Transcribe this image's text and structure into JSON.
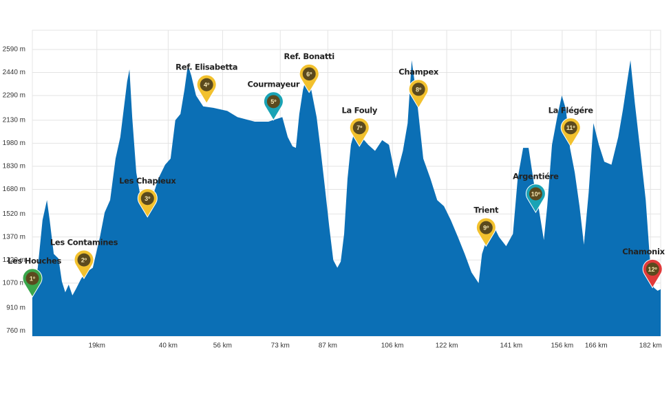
{
  "chart_data": {
    "type": "area",
    "color": "#0b6fb5",
    "grid": true,
    "x": [
      0,
      1.6,
      3.0,
      4.3,
      5.1,
      6.3,
      7.7,
      8.7,
      9.7,
      10.7,
      11.8,
      12.8,
      14.4,
      15.8,
      17.8,
      19.9,
      21.3,
      22.9,
      24.5,
      25.9,
      26.9,
      27.9,
      28.6,
      29.4,
      30.6,
      32.0,
      33.4,
      35.1,
      37.1,
      39.1,
      40.7,
      42.1,
      43.6,
      44.8,
      45.8,
      46.8,
      48.2,
      50.3,
      53.3,
      57.4,
      60.4,
      65.5,
      69.5,
      73.6,
      75.2,
      76.6,
      77.6,
      78.6,
      79.7,
      81.1,
      82.1,
      83.7,
      84.7,
      86.1,
      87.4,
      88.6,
      89.8,
      90.8,
      91.8,
      92.8,
      93.8,
      94.9,
      96.9,
      98.9,
      100.9,
      103.0,
      105.0,
      107.0,
      109.1,
      110.5,
      111.7,
      113.1,
      115.1,
      117.2,
      119.2,
      121.2,
      123.2,
      125.3,
      127.3,
      129.3,
      131.4,
      132.4,
      134.0,
      135.4,
      137.4,
      139.5,
      141.5,
      142.9,
      144.5,
      146.1,
      147.6,
      149.0,
      150.6,
      151.6,
      153.0,
      154.7,
      155.9,
      157.1,
      158.3,
      159.7,
      161.1,
      162.4,
      163.8,
      165.2,
      166.8,
      168.4,
      170.5,
      172.5,
      173.9,
      175.4,
      176.1,
      177.4,
      179.0,
      180.6,
      182.0,
      183.0,
      184.1,
      185
    ],
    "values": [
      990,
      1170,
      1480,
      1610,
      1480,
      1260,
      1230,
      1080,
      1010,
      1060,
      990,
      1030,
      1100,
      1140,
      1170,
      1370,
      1530,
      1610,
      1880,
      2020,
      2200,
      2380,
      2460,
      2150,
      1790,
      1610,
      1570,
      1610,
      1750,
      1840,
      1880,
      2130,
      2170,
      2330,
      2490,
      2420,
      2290,
      2220,
      2210,
      2190,
      2150,
      2120,
      2120,
      2150,
      2020,
      1960,
      1950,
      2170,
      2330,
      2440,
      2330,
      2150,
      1970,
      1700,
      1440,
      1220,
      1170,
      1210,
      1390,
      1750,
      1970,
      2060,
      2020,
      1970,
      1930,
      2000,
      1970,
      1750,
      1930,
      2110,
      2520,
      2290,
      1880,
      1750,
      1610,
      1570,
      1480,
      1370,
      1260,
      1140,
      1070,
      1260,
      1370,
      1460,
      1370,
      1310,
      1390,
      1750,
      1950,
      1950,
      1730,
      1570,
      1350,
      1570,
      1970,
      2170,
      2290,
      2200,
      1950,
      1790,
      1570,
      1320,
      1660,
      2110,
      1970,
      1860,
      1840,
      2020,
      2200,
      2420,
      2520,
      2240,
      1930,
      1610,
      1170,
      1040,
      1020,
      1030
    ],
    "xlim": [
      0,
      185
    ],
    "ylim": [
      725,
      2715
    ],
    "xticks": [
      {
        "value": 19,
        "label": "19km"
      },
      {
        "value": 40,
        "label": "40 km"
      },
      {
        "value": 56,
        "label": "56 km"
      },
      {
        "value": 73,
        "label": "73 km"
      },
      {
        "value": 87,
        "label": "87 km"
      },
      {
        "value": 106,
        "label": "106 km"
      },
      {
        "value": 122,
        "label": "122 km"
      },
      {
        "value": 141,
        "label": "141 km"
      },
      {
        "value": 156,
        "label": "156 km"
      },
      {
        "value": 166,
        "label": "166 km"
      },
      {
        "value": 182,
        "label": "182 km"
      }
    ],
    "yticks": [
      {
        "value": 760,
        "label": "760 m"
      },
      {
        "value": 910,
        "label": "910 m"
      },
      {
        "value": 1070,
        "label": "1070 m"
      },
      {
        "value": 1220,
        "label": "1220 m"
      },
      {
        "value": 1370,
        "label": "1370 m"
      },
      {
        "value": 1520,
        "label": "1520 m"
      },
      {
        "value": 1680,
        "label": "1680 m"
      },
      {
        "value": 1830,
        "label": "1830 m"
      },
      {
        "value": 1980,
        "label": "1980 m"
      },
      {
        "value": 2130,
        "label": "2130 m"
      },
      {
        "value": 2290,
        "label": "2290 m"
      },
      {
        "value": 2440,
        "label": "2440 m"
      },
      {
        "value": 2590,
        "label": "2590 m"
      }
    ],
    "waypoints": [
      {
        "name": "Les Houches",
        "label": "1º",
        "color": "#3aa64c",
        "x": 0,
        "y": 980
      },
      {
        "name": "Les Contamines",
        "label": "2º",
        "color": "#f2c12e",
        "x": 15.2,
        "y": 1100
      },
      {
        "name": "Les Chapieux",
        "label": "3º",
        "color": "#f2c12e",
        "x": 33.9,
        "y": 1500
      },
      {
        "name": "Ref. Elisabetta",
        "label": "4º",
        "color": "#f2c12e",
        "x": 51.3,
        "y": 2240
      },
      {
        "name": "Courmayeur",
        "label": "5º",
        "color": "#1aa3b5",
        "x": 71.0,
        "y": 2130
      },
      {
        "name": "Ref. Bonatti",
        "label": "6º",
        "color": "#f2c12e",
        "x": 81.5,
        "y": 2310
      },
      {
        "name": "La Fouly",
        "label": "7º",
        "color": "#f2c12e",
        "x": 96.3,
        "y": 1960
      },
      {
        "name": "Champex",
        "label": "8º",
        "color": "#f2c12e",
        "x": 113.7,
        "y": 2210
      },
      {
        "name": "Trient",
        "label": "9º",
        "color": "#f2c12e",
        "x": 133.6,
        "y": 1310
      },
      {
        "name": "Argentiére",
        "label": "10º",
        "color": "#1aa3b5",
        "x": 148.2,
        "y": 1530
      },
      {
        "name": "La Flégére",
        "label": "11º",
        "color": "#f2c12e",
        "x": 158.5,
        "y": 1960
      },
      {
        "name": "Chamonix",
        "label": "12º",
        "color": "#e03a3a",
        "x": 182.6,
        "y": 1040
      }
    ]
  }
}
